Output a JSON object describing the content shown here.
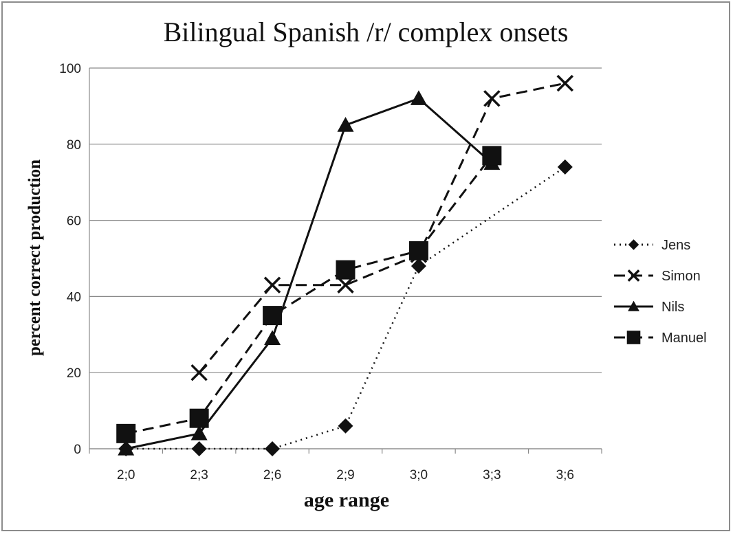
{
  "chart_data": {
    "type": "line",
    "title": "Bilingual Spanish /r/ complex onsets",
    "xlabel": "age range",
    "ylabel": "percent correct production",
    "categories": [
      "2;0",
      "2;3",
      "2;6",
      "2;9",
      "3;0",
      "3;3",
      "3;6"
    ],
    "ylim": [
      0,
      100
    ],
    "yticks": [
      0,
      20,
      40,
      60,
      80,
      100
    ],
    "grid": true,
    "legend_position": "right",
    "series": [
      {
        "name": "Jens",
        "marker": "diamond",
        "line": "dotted",
        "values": [
          0,
          0,
          0,
          6,
          48,
          null,
          74
        ]
      },
      {
        "name": "Simon",
        "marker": "x",
        "line": "dashed",
        "values": [
          null,
          20,
          43,
          43,
          51,
          92,
          96
        ]
      },
      {
        "name": "Nils",
        "marker": "triangle",
        "line": "solid",
        "values": [
          0,
          4,
          29,
          85,
          92,
          75,
          null
        ]
      },
      {
        "name": "Manuel",
        "marker": "square",
        "line": "dashed",
        "values": [
          4,
          8,
          35,
          47,
          52,
          77,
          null
        ]
      }
    ],
    "colors": {
      "line": "#111111",
      "grid": "#8a8a8a",
      "frame": "#8c8c8c"
    }
  }
}
